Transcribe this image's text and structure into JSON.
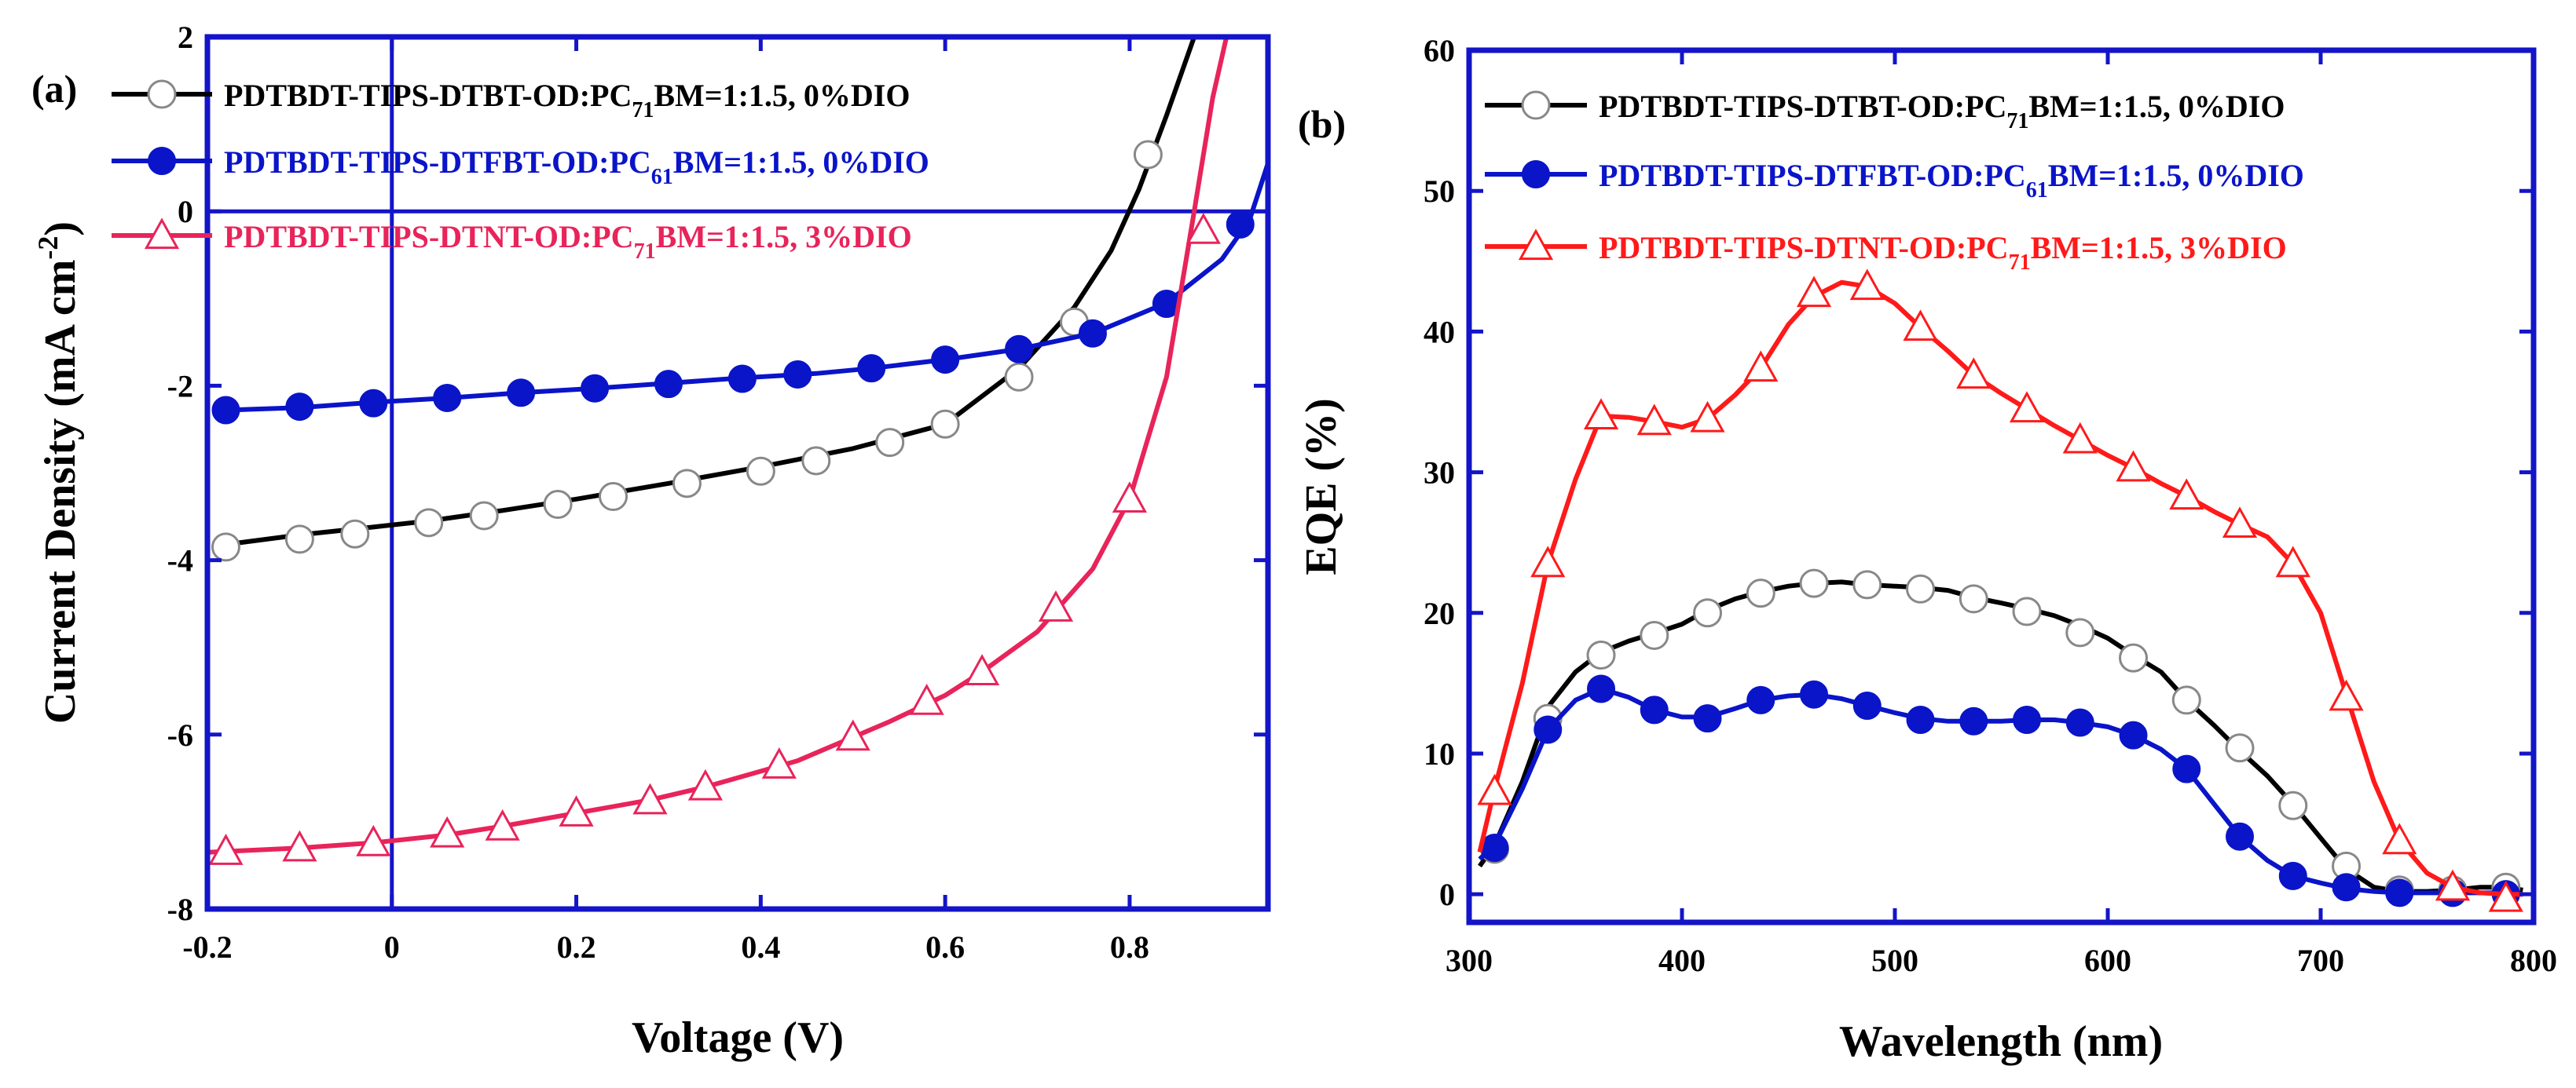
{
  "chart_data": [
    {
      "id": "a",
      "type": "line",
      "panel_label": "(a)",
      "xlabel": "Voltage (V)",
      "ylabel": "Current Density (mA cm",
      "ylabel_sup": "-2",
      "ylabel_end": ")",
      "xlim": [
        -0.2,
        0.95
      ],
      "ylim": [
        -8,
        2
      ],
      "xticks": [
        -0.2,
        0,
        0.2,
        0.4,
        0.6,
        0.8
      ],
      "xtick_labels": [
        "-0.2",
        "0",
        "0.2",
        "0.4",
        "0.6",
        "0.8"
      ],
      "yticks": [
        -8,
        -6,
        -4,
        -2,
        0,
        2
      ],
      "ytick_labels": [
        "-8",
        "-6",
        "-4",
        "-2",
        "0",
        "2"
      ],
      "zero_lines": true,
      "legend_position": "top-left",
      "series": [
        {
          "name": "PDTBDT-TIPS-DTBT-OD:PC71BM=1:1.5, 0%DIO",
          "legend": {
            "pre": "PDTBDT-TIPS-DTBT-OD:PC",
            "sub": "71",
            "post": "BM=1:1.5, 0%DIO"
          },
          "color": "#000000",
          "marker": "circle-open",
          "x": [
            -0.18,
            -0.1,
            -0.02,
            0.04,
            0.12,
            0.2,
            0.3,
            0.4,
            0.5,
            0.6,
            0.68,
            0.74,
            0.78,
            0.81,
            0.84,
            0.87
          ],
          "y": [
            -3.82,
            -3.71,
            -3.62,
            -3.55,
            -3.43,
            -3.3,
            -3.12,
            -2.93,
            -2.72,
            -2.44,
            -1.8,
            -1.1,
            -0.45,
            0.25,
            1.1,
            2.1
          ],
          "marker_x": [
            -0.18,
            -0.1,
            -0.04,
            0.04,
            0.1,
            0.18,
            0.24,
            0.32,
            0.4,
            0.46,
            0.54,
            0.6,
            0.68,
            0.74,
            0.82
          ],
          "marker_y": [
            -3.85,
            -3.76,
            -3.7,
            -3.57,
            -3.49,
            -3.36,
            -3.27,
            -3.12,
            -2.98,
            -2.86,
            -2.65,
            -2.44,
            -1.9,
            -1.27,
            0.65
          ]
        },
        {
          "name": "PDTBDT-TIPS-DTFBT-OD:PC61BM=1:1.5, 0%DIO",
          "legend": {
            "pre": "PDTBDT-TIPS-DTFBT-OD:PC",
            "sub": "61",
            "post": "BM=1:1.5, 0%DIO"
          },
          "color": "#0a14c8",
          "marker": "circle-filled",
          "x": [
            -0.18,
            -0.1,
            -0.02,
            0.06,
            0.14,
            0.22,
            0.3,
            0.38,
            0.46,
            0.52,
            0.6,
            0.68,
            0.76,
            0.84,
            0.9,
            0.93,
            0.95
          ],
          "y": [
            -2.28,
            -2.25,
            -2.19,
            -2.14,
            -2.08,
            -2.03,
            -1.97,
            -1.91,
            -1.86,
            -1.8,
            -1.7,
            -1.58,
            -1.4,
            -1.05,
            -0.55,
            -0.1,
            0.55
          ],
          "marker_x": [
            -0.18,
            -0.1,
            -0.02,
            0.06,
            0.14,
            0.22,
            0.3,
            0.38,
            0.44,
            0.52,
            0.6,
            0.68,
            0.76,
            0.84,
            0.92
          ],
          "marker_y": [
            -2.28,
            -2.24,
            -2.2,
            -2.14,
            -2.08,
            -2.03,
            -1.98,
            -1.92,
            -1.87,
            -1.8,
            -1.7,
            -1.58,
            -1.4,
            -1.06,
            -0.15
          ]
        },
        {
          "name": "PDTBDT-TIPS-DTNT-OD:PC71BM=1:1.5, 3%DIO",
          "legend": {
            "pre": "PDTBDT-TIPS-DTNT-OD:PC",
            "sub": "71",
            "post": "BM=1:1.5,  3%DIO"
          },
          "color": "#e8245a",
          "marker": "triangle-open",
          "x": [
            -0.2,
            -0.1,
            -0.02,
            0.06,
            0.12,
            0.2,
            0.28,
            0.34,
            0.44,
            0.5,
            0.54,
            0.6,
            0.64,
            0.7,
            0.76,
            0.8,
            0.84,
            0.87,
            0.89,
            0.905
          ],
          "y": [
            -7.35,
            -7.3,
            -7.24,
            -7.15,
            -7.05,
            -6.9,
            -6.75,
            -6.6,
            -6.3,
            -6.03,
            -5.85,
            -5.55,
            -5.28,
            -4.82,
            -4.1,
            -3.3,
            -1.9,
            0.0,
            1.3,
            2.1
          ],
          "marker_x": [
            -0.18,
            -0.1,
            -0.02,
            0.06,
            0.12,
            0.2,
            0.28,
            0.34,
            0.42,
            0.5,
            0.58,
            0.64,
            0.72,
            0.8,
            0.88
          ],
          "marker_y": [
            -7.34,
            -7.3,
            -7.24,
            -7.14,
            -7.06,
            -6.9,
            -6.76,
            -6.6,
            -6.35,
            -6.03,
            -5.62,
            -5.28,
            -4.55,
            -3.3,
            -0.22
          ]
        }
      ]
    },
    {
      "id": "b",
      "type": "line",
      "panel_label": "(b)",
      "xlabel": "Wavelength (nm)",
      "ylabel": "EQE (%)",
      "xlim": [
        300,
        800
      ],
      "ylim": [
        -2,
        60
      ],
      "xticks": [
        300,
        400,
        500,
        600,
        700,
        800
      ],
      "xtick_labels": [
        "300",
        "400",
        "500",
        "600",
        "700",
        "800"
      ],
      "yticks": [
        0,
        10,
        20,
        30,
        40,
        50,
        60
      ],
      "ytick_labels": [
        "0",
        "10",
        "20",
        "30",
        "40",
        "50",
        "60"
      ],
      "zero_lines": false,
      "legend_position": "top-left",
      "series": [
        {
          "name": "PDTBDT-TIPS-DTBT-OD:PC71BM=1:1.5, 0%DIO",
          "legend": {
            "pre": "PDTBDT-TIPS-DTBT-OD:PC",
            "sub": "71",
            "post": "BM=1:1.5, 0%DIO"
          },
          "color": "#000000",
          "marker": "circle-open",
          "x": [
            305,
            312,
            325,
            338,
            350,
            362,
            375,
            388,
            400,
            412,
            425,
            437,
            450,
            462,
            475,
            487,
            500,
            512,
            525,
            537,
            550,
            562,
            575,
            587,
            600,
            612,
            625,
            637,
            650,
            662,
            675,
            687,
            700,
            712,
            725,
            737,
            750,
            762,
            775,
            787,
            795
          ],
          "y": [
            2.0,
            3.5,
            8.0,
            13.5,
            15.8,
            17.2,
            18.0,
            18.6,
            19.2,
            20.2,
            21.0,
            21.5,
            21.9,
            22.1,
            22.2,
            22.0,
            21.9,
            21.8,
            21.6,
            21.1,
            20.7,
            20.3,
            19.8,
            19.1,
            18.2,
            17.0,
            15.8,
            13.8,
            12.0,
            10.2,
            8.4,
            6.4,
            4.0,
            1.8,
            0.5,
            0.2,
            0.2,
            0.3,
            0.5,
            0.5,
            0.3
          ],
          "marker_x": [
            312,
            337,
            362,
            387,
            412,
            437,
            462,
            487,
            512,
            537,
            562,
            587,
            612,
            637,
            662,
            687,
            712,
            737,
            762,
            787
          ],
          "marker_y": [
            3.2,
            12.5,
            17.0,
            18.4,
            20.0,
            21.4,
            22.1,
            22.0,
            21.7,
            21.0,
            20.1,
            18.6,
            16.8,
            13.8,
            10.4,
            6.3,
            2.0,
            0.3,
            0.3,
            0.5
          ]
        },
        {
          "name": "PDTBDT-TIPS-DTFBT-OD:PC61BM=1:1.5, 0%DIO",
          "legend": {
            "pre": "PDTBDT-TIPS-DTFBT-OD:PC",
            "sub": "61",
            "post": "BM=1:1.5, 0%DIO"
          },
          "color": "#0a14c8",
          "marker": "circle-filled",
          "x": [
            305,
            312,
            325,
            337,
            350,
            362,
            375,
            387,
            400,
            412,
            425,
            437,
            450,
            462,
            475,
            487,
            500,
            512,
            525,
            537,
            550,
            562,
            575,
            587,
            600,
            612,
            625,
            637,
            650,
            662,
            675,
            687,
            700,
            712,
            725,
            737,
            750,
            762,
            775,
            787,
            795
          ],
          "y": [
            2.5,
            3.5,
            7.5,
            11.7,
            13.8,
            14.6,
            14.0,
            13.1,
            12.6,
            12.6,
            13.2,
            13.8,
            14.1,
            14.2,
            13.9,
            13.4,
            12.9,
            12.5,
            12.3,
            12.3,
            12.3,
            12.4,
            12.4,
            12.2,
            11.9,
            11.3,
            10.3,
            8.9,
            6.4,
            4.1,
            2.4,
            1.3,
            0.8,
            0.4,
            0.2,
            0.1,
            0.1,
            0.1,
            0.1,
            0.1,
            0.0
          ],
          "marker_x": [
            312,
            337,
            362,
            387,
            412,
            437,
            462,
            487,
            512,
            537,
            562,
            587,
            612,
            637,
            662,
            687,
            712,
            737,
            762,
            787
          ],
          "marker_y": [
            3.3,
            11.7,
            14.6,
            13.1,
            12.5,
            13.8,
            14.2,
            13.4,
            12.4,
            12.3,
            12.4,
            12.2,
            11.3,
            8.9,
            4.1,
            1.3,
            0.5,
            0.1,
            0.1,
            0.0
          ]
        },
        {
          "name": "PDTBDT-TIPS-DTNT-OD:PC71BM=1:1.5, 3%DIO",
          "legend": {
            "pre": "PDTBDT-TIPS-DTNT-OD:PC",
            "sub": "71",
            "post": "BM=1:1.5, 3%DIO"
          },
          "color": "#ff1a1a",
          "marker": "triangle-open",
          "x": [
            305,
            312,
            325,
            337,
            350,
            362,
            375,
            387,
            400,
            412,
            425,
            437,
            450,
            462,
            475,
            487,
            500,
            512,
            525,
            537,
            550,
            562,
            575,
            587,
            600,
            612,
            625,
            637,
            650,
            662,
            675,
            687,
            700,
            712,
            725,
            737,
            750,
            762,
            775,
            787,
            795
          ],
          "y": [
            3.0,
            7.5,
            15.0,
            23.5,
            29.5,
            34.0,
            33.9,
            33.6,
            33.2,
            33.8,
            35.5,
            37.4,
            40.5,
            42.5,
            43.5,
            43.2,
            42.0,
            40.3,
            38.6,
            36.9,
            35.6,
            34.5,
            33.3,
            32.3,
            31.2,
            30.3,
            29.2,
            28.3,
            27.2,
            26.3,
            25.4,
            23.5,
            20.0,
            14.2,
            8.0,
            3.8,
            1.5,
            0.5,
            0.1,
            0.0,
            0.0
          ],
          "marker_x": [
            312,
            337,
            362,
            387,
            412,
            437,
            462,
            487,
            512,
            537,
            562,
            587,
            612,
            637,
            662,
            687,
            712,
            737,
            762,
            787
          ],
          "marker_y": [
            7.3,
            23.5,
            34.0,
            33.6,
            33.8,
            37.4,
            42.7,
            43.2,
            40.3,
            36.9,
            34.5,
            32.3,
            30.3,
            28.3,
            26.3,
            23.5,
            14.0,
            3.8,
            0.5,
            -0.3
          ]
        }
      ]
    }
  ]
}
